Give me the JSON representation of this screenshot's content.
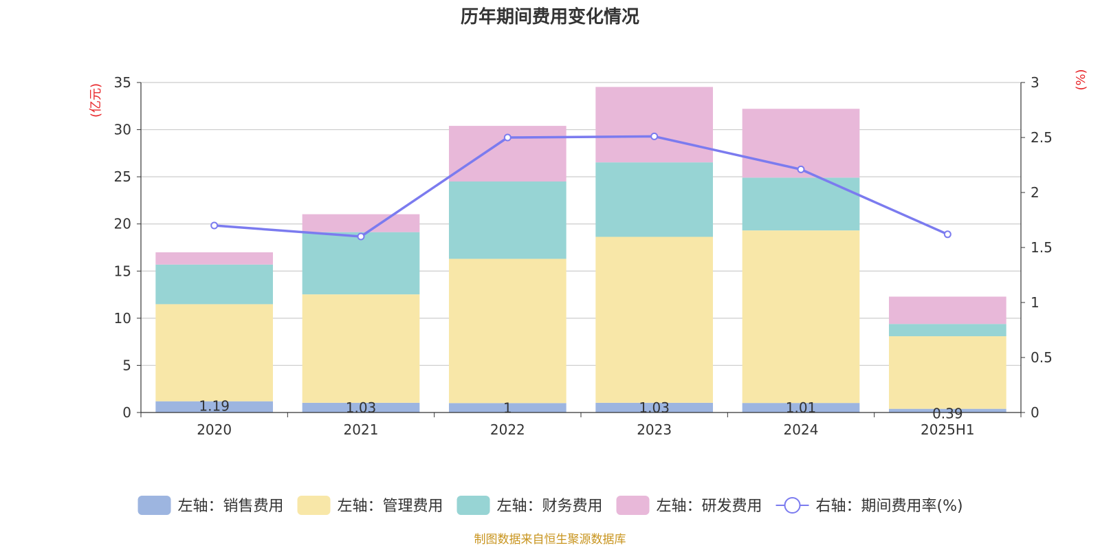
{
  "chart_data": {
    "type": "bar",
    "title": "历年期间费用变化情况",
    "categories": [
      "2020",
      "2021",
      "2022",
      "2023",
      "2024",
      "2025H1"
    ],
    "series": [
      {
        "name": "左轴：销售费用",
        "axis": "left",
        "type": "bar",
        "stack": "total",
        "color": "#9db5e0",
        "values": [
          1.19,
          1.03,
          1,
          1.03,
          1.01,
          0.39
        ],
        "data_labels": [
          "1.19",
          "1.03",
          "1",
          "1.03",
          "1.01",
          "0.39"
        ]
      },
      {
        "name": "左轴：管理费用",
        "axis": "left",
        "type": "bar",
        "stack": "total",
        "color": "#f8e7a8",
        "values": [
          10.3,
          11.5,
          15.3,
          17.6,
          18.3,
          7.7
        ]
      },
      {
        "name": "左轴：财务费用",
        "axis": "left",
        "type": "bar",
        "stack": "total",
        "color": "#97d4d4",
        "values": [
          4.2,
          6.6,
          8.2,
          7.9,
          5.6,
          1.3
        ]
      },
      {
        "name": "左轴：研发费用",
        "axis": "left",
        "type": "bar",
        "stack": "total",
        "color": "#e8b8d9",
        "values": [
          1.3,
          1.9,
          5.9,
          8.0,
          7.3,
          2.9
        ]
      },
      {
        "name": "右轴：期间费用率(%)",
        "axis": "right",
        "type": "line",
        "color": "#7b7bef",
        "values": [
          1.7,
          1.6,
          2.5,
          2.51,
          2.21,
          1.62
        ]
      }
    ],
    "y_left": {
      "label": "(亿元)",
      "min": 0,
      "max": 35,
      "ticks": [
        "0",
        "5",
        "10",
        "15",
        "20",
        "25",
        "30",
        "35"
      ]
    },
    "y_right": {
      "label": "(%)",
      "min": 0,
      "max": 3,
      "ticks": [
        "0",
        "0.5",
        "1",
        "1.5",
        "2",
        "2.5",
        "3"
      ]
    },
    "grid": true,
    "legend_position": "bottom",
    "source_note": "制图数据来自恒生聚源数据库",
    "colors": {
      "title": "#333333",
      "axis_label": "#e8262a",
      "axis": "#333333",
      "grid": "#cccccc",
      "source": "#c8941e"
    }
  }
}
